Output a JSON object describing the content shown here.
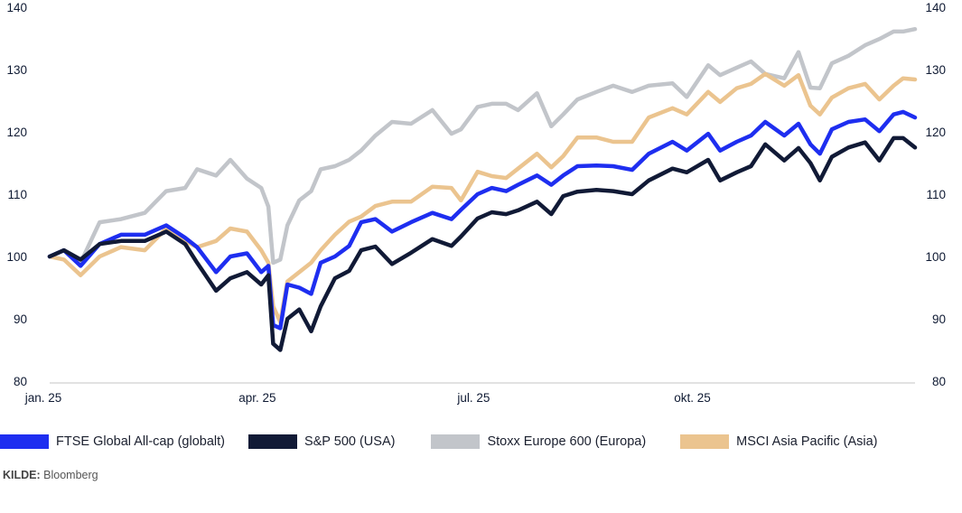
{
  "chart_data": {
    "type": "line",
    "title": "",
    "xlabel": "",
    "ylabel": "",
    "ylim": [
      80,
      140
    ],
    "yticks": [
      80,
      90,
      100,
      110,
      120,
      130,
      140
    ],
    "ytick_labels": [
      "80",
      "90",
      "100",
      "110",
      "120",
      "130",
      "140"
    ],
    "y_axis_sides": [
      "left",
      "right"
    ],
    "xlim": [
      "2025-01-01",
      "2025-12-31"
    ],
    "xticks": [
      {
        "date": "2025-01-01",
        "label": "jan. 25"
      },
      {
        "date": "2025-04-01",
        "label": "apr. 25"
      },
      {
        "date": "2025-07-01",
        "label": "jul. 25"
      },
      {
        "date": "2025-10-01",
        "label": "okt. 25"
      }
    ],
    "grid": false,
    "legend_position": "bottom",
    "x": [
      "2025-01-01",
      "2025-01-07",
      "2025-01-14",
      "2025-01-22",
      "2025-01-31",
      "2025-02-10",
      "2025-02-19",
      "2025-02-27",
      "2025-03-04",
      "2025-03-12",
      "2025-03-18",
      "2025-03-25",
      "2025-03-31",
      "2025-04-03",
      "2025-04-05",
      "2025-04-08",
      "2025-04-11",
      "2025-04-16",
      "2025-04-21",
      "2025-04-25",
      "2025-05-01",
      "2025-05-07",
      "2025-05-12",
      "2025-05-18",
      "2025-05-25",
      "2025-06-02",
      "2025-06-11",
      "2025-06-19",
      "2025-06-23",
      "2025-06-30",
      "2025-07-06",
      "2025-07-12",
      "2025-07-17",
      "2025-07-25",
      "2025-07-31",
      "2025-08-05",
      "2025-08-11",
      "2025-08-19",
      "2025-08-26",
      "2025-09-03",
      "2025-09-10",
      "2025-09-20",
      "2025-09-26",
      "2025-10-05",
      "2025-10-10",
      "2025-10-17",
      "2025-10-23",
      "2025-10-29",
      "2025-11-06",
      "2025-11-12",
      "2025-11-17",
      "2025-11-21",
      "2025-11-26",
      "2025-12-03",
      "2025-12-10",
      "2025-12-16",
      "2025-12-22",
      "2025-12-26",
      "2025-12-31"
    ],
    "series": [
      {
        "name": "Stoxx Europe 600 (Europa)",
        "color": "#c2c5ca",
        "values": [
          100,
          101,
          99,
          105.5,
          106,
          107,
          110.5,
          111,
          114,
          113,
          115.5,
          112.5,
          111,
          108,
          99,
          99.5,
          105,
          109,
          110.5,
          114,
          114.5,
          115.5,
          117,
          119.4,
          121.6,
          121.3,
          123.5,
          119.7,
          120.4,
          124,
          124.5,
          124.5,
          123.5,
          126.2,
          120.9,
          122.8,
          125.2,
          126.4,
          127.4,
          126.4,
          127.4,
          127.8,
          125.6,
          130.7,
          129.1,
          130.3,
          131.3,
          129.3,
          128.6,
          132.8,
          127.1,
          127,
          131,
          132.2,
          133.9,
          134.9,
          136.1,
          136.1,
          136.5
        ]
      },
      {
        "name": "MSCI Asia Pacific (Asia)",
        "color": "#ebc48f",
        "values": [
          100,
          99.5,
          97,
          100,
          101.5,
          101,
          104.5,
          102.5,
          101.5,
          102.5,
          104.5,
          104,
          101,
          99,
          92,
          89.5,
          96,
          97.5,
          99,
          101,
          103.5,
          105.6,
          106.4,
          108.1,
          108.8,
          108.8,
          111.2,
          111,
          109,
          113.6,
          112.9,
          112.6,
          114.1,
          116.5,
          114.3,
          116.1,
          119.1,
          119.1,
          118.4,
          118.4,
          122.3,
          123.8,
          122.8,
          126.4,
          124.8,
          127,
          127.7,
          129.3,
          127.4,
          129.1,
          124.2,
          122.8,
          125.5,
          127,
          127.7,
          125.2,
          127.4,
          128.6,
          128.4
        ]
      },
      {
        "name": "FTSE Global All-cap (globalt)",
        "color": "#1e2ef0",
        "values": [
          100,
          101,
          98.5,
          102,
          103.5,
          103.5,
          105,
          103,
          101.5,
          97.5,
          100,
          100.5,
          97.5,
          98.5,
          89,
          88.5,
          95.5,
          95,
          94,
          99,
          100,
          101.7,
          105.5,
          106,
          104,
          105.5,
          107,
          106,
          107.5,
          110,
          111,
          110.5,
          111.5,
          113,
          111.5,
          113,
          114.5,
          114.6,
          114.5,
          113.9,
          116.5,
          118.4,
          117,
          119.7,
          117,
          118.4,
          119.4,
          121.6,
          119.4,
          121.3,
          118,
          116.5,
          120.4,
          121.6,
          122,
          120.1,
          122.8,
          123.2,
          122.3
        ]
      },
      {
        "name": "S&P 500 (USA)",
        "color": "#111a36",
        "values": [
          100,
          101,
          99.5,
          102,
          102.5,
          102.5,
          104,
          102,
          99,
          94.5,
          96.5,
          97.5,
          95.5,
          97,
          86,
          85,
          90,
          91.5,
          88,
          92,
          96.5,
          97.7,
          101,
          101.6,
          98.8,
          100.6,
          102.8,
          101.7,
          103.2,
          106.1,
          107.1,
          106.8,
          107.4,
          108.8,
          106.8,
          109.7,
          110.4,
          110.7,
          110.5,
          110,
          112.2,
          114.1,
          113.5,
          115.5,
          112.2,
          113.5,
          114.5,
          118,
          115.4,
          117.4,
          115,
          112.2,
          116,
          117.5,
          118.3,
          115.4,
          119,
          119,
          117.5
        ]
      }
    ],
    "legend": [
      {
        "label": "FTSE Global All-cap (globalt)",
        "color": "#1e2ef0"
      },
      {
        "label": "S&P 500 (USA)",
        "color": "#111a36"
      },
      {
        "label": "Stoxx Europe 600 (Europa)",
        "color": "#c2c5ca"
      },
      {
        "label": "MSCI Asia Pacific (Asia)",
        "color": "#ebc48f"
      }
    ]
  },
  "source": {
    "label": "KILDE:",
    "value": "Bloomberg"
  }
}
